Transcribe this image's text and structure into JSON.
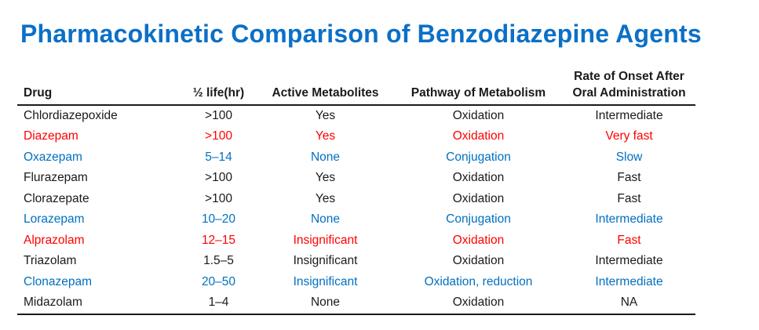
{
  "title": "Pharmacokinetic Comparison of Benzodiazepine Agents",
  "colors": {
    "title": "#0b70c7",
    "black": "#1a1a1a",
    "red": "#ff0000",
    "blue": "#0070c0"
  },
  "table": {
    "columns": [
      {
        "label": "Drug",
        "align": "left"
      },
      {
        "label": "½ life(hr)",
        "align": "center"
      },
      {
        "label": "Active Metabolites",
        "align": "center"
      },
      {
        "label": "Pathway of Metabolism",
        "align": "center"
      },
      {
        "label": "Rate of Onset After Oral Administration",
        "align": "center"
      }
    ],
    "rows": [
      {
        "drug": "Chlordiazepoxide",
        "half_life": ">100",
        "active_metabolites": "Yes",
        "pathway": "Oxidation",
        "onset": "Intermediate",
        "color": "black"
      },
      {
        "drug": "Diazepam",
        "half_life": ">100",
        "active_metabolites": "Yes",
        "pathway": "Oxidation",
        "onset": "Very fast",
        "color": "red"
      },
      {
        "drug": "Oxazepam",
        "half_life": "5–14",
        "active_metabolites": "None",
        "pathway": "Conjugation",
        "onset": "Slow",
        "color": "blue"
      },
      {
        "drug": "Flurazepam",
        "half_life": ">100",
        "active_metabolites": "Yes",
        "pathway": "Oxidation",
        "onset": "Fast",
        "color": "black"
      },
      {
        "drug": "Clorazepate",
        "half_life": ">100",
        "active_metabolites": "Yes",
        "pathway": "Oxidation",
        "onset": "Fast",
        "color": "black"
      },
      {
        "drug": "Lorazepam",
        "half_life": "10–20",
        "active_metabolites": "None",
        "pathway": "Conjugation",
        "onset": "Intermediate",
        "color": "blue"
      },
      {
        "drug": "Alprazolam",
        "half_life": "12–15",
        "active_metabolites": "Insignificant",
        "pathway": "Oxidation",
        "onset": "Fast",
        "color": "red"
      },
      {
        "drug": "Triazolam",
        "half_life": "1.5–5",
        "active_metabolites": "Insignificant",
        "pathway": "Oxidation",
        "onset": "Intermediate",
        "color": "black"
      },
      {
        "drug": "Clonazepam",
        "half_life": "20–50",
        "active_metabolites": "Insignificant",
        "pathway": "Oxidation, reduction",
        "onset": "Intermediate",
        "color": "blue"
      },
      {
        "drug": "Midazolam",
        "half_life": "1–4",
        "active_metabolites": "None",
        "pathway": "Oxidation",
        "onset": "NA",
        "color": "black"
      }
    ]
  }
}
